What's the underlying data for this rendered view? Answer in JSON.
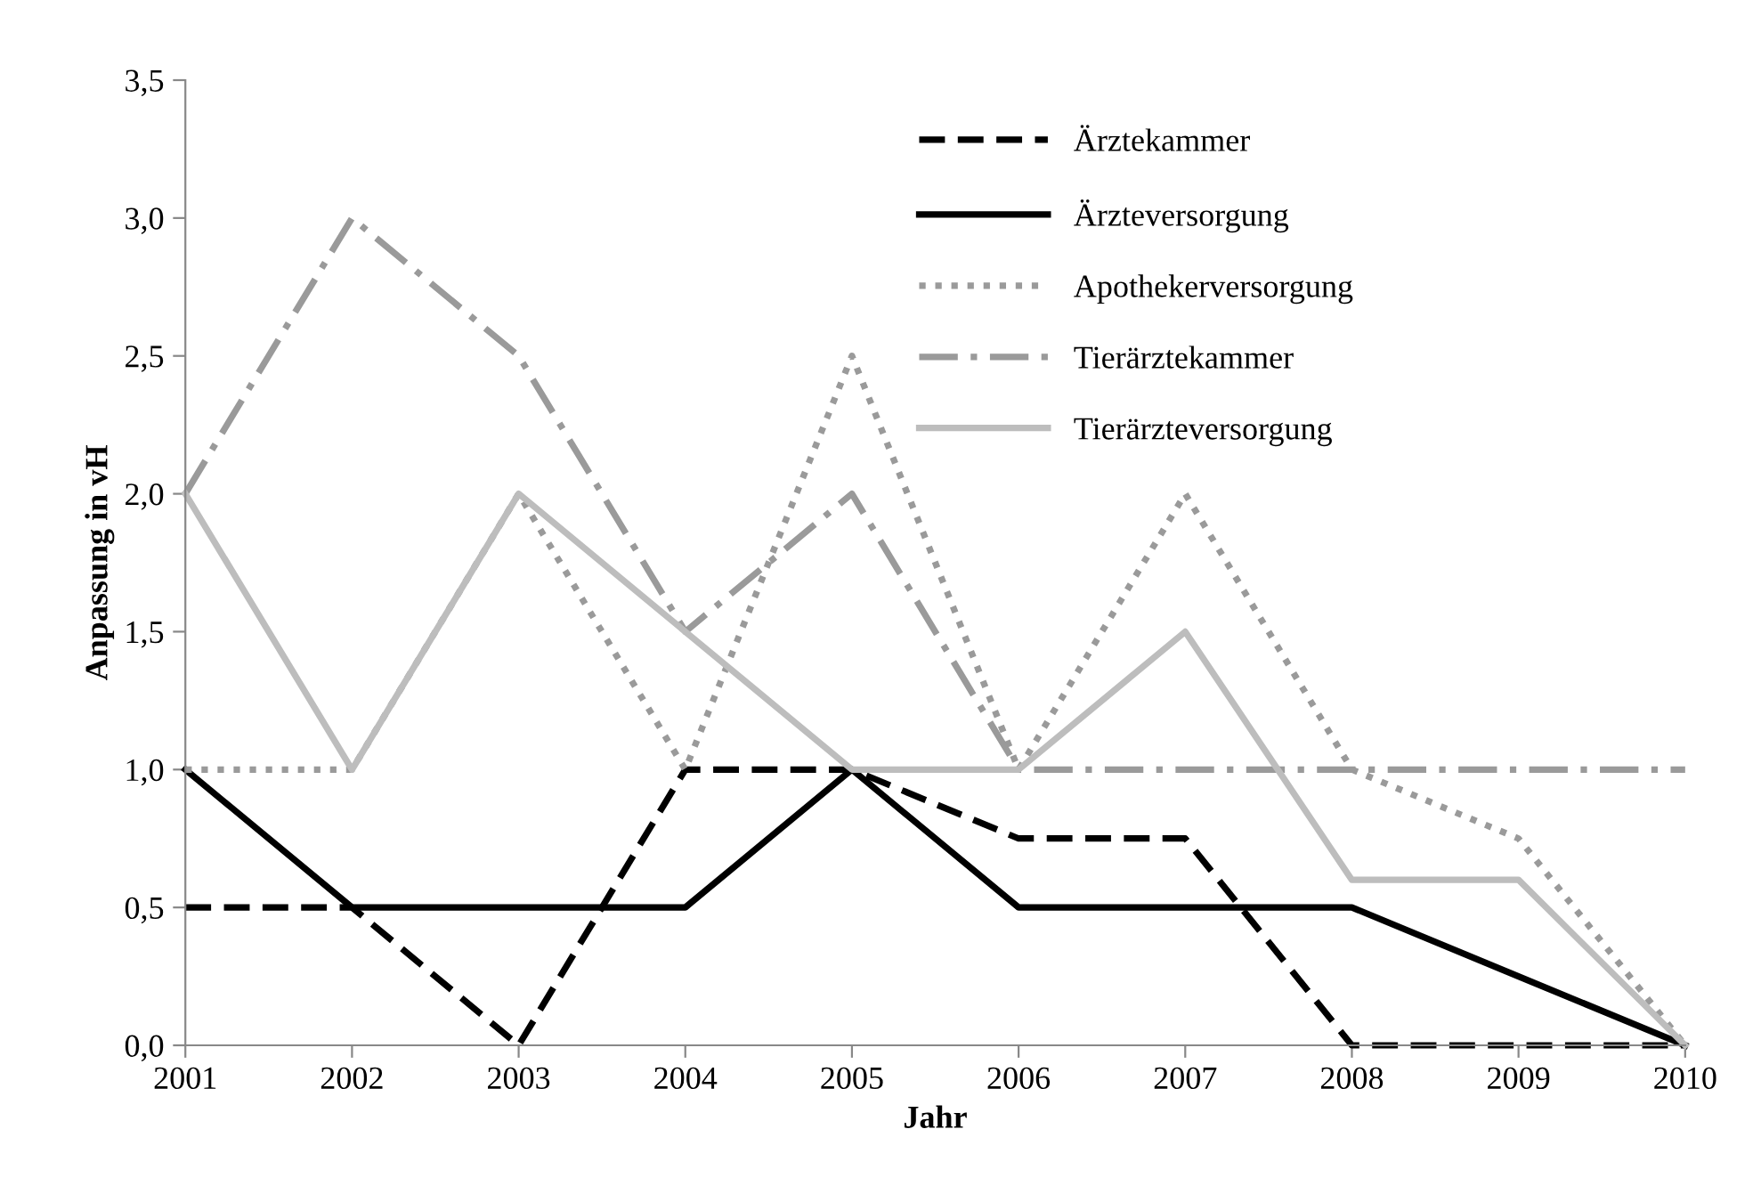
{
  "chart_data": {
    "type": "line",
    "xlabel": "Jahr",
    "ylabel": "Anpassung in vH",
    "x": [
      2001,
      2002,
      2003,
      2004,
      2005,
      2006,
      2007,
      2008,
      2009,
      2010
    ],
    "xlim": [
      2001,
      2010
    ],
    "xticks": [
      2001,
      2002,
      2003,
      2004,
      2005,
      2006,
      2007,
      2008,
      2009,
      2010
    ],
    "ylim": [
      0,
      3.5
    ],
    "yticks": [
      {
        "value": 0,
        "label": "0,0"
      },
      {
        "value": 0.5,
        "label": "0,5"
      },
      {
        "value": 1,
        "label": "1,0"
      },
      {
        "value": 1.5,
        "label": "1,5"
      },
      {
        "value": 2,
        "label": "2,0"
      },
      {
        "value": 2.5,
        "label": "2,5"
      },
      {
        "value": 3,
        "label": "3,0"
      },
      {
        "value": 3.5,
        "label": "3,5"
      }
    ],
    "grid": false,
    "legend": "top",
    "marker": "none",
    "series": [
      {
        "name": "Ärztekammer",
        "color": "#000000",
        "line_style": "dashed",
        "values": [
          0.5,
          0.5,
          0,
          1,
          1,
          0.75,
          0.75,
          0,
          0,
          0
        ]
      },
      {
        "name": "Ärzteversorgung",
        "color": "#000000",
        "line_style": "solid",
        "values": [
          1,
          0.5,
          0.5,
          0.5,
          1,
          0.5,
          0.5,
          0.5,
          0.25,
          0
        ]
      },
      {
        "name": "Apothekerversorgung",
        "color": "#9a9a9a",
        "line_style": "dotted",
        "values": [
          1,
          1,
          2,
          1,
          2.5,
          1,
          2,
          1,
          0.75,
          0
        ]
      },
      {
        "name": "Tierärztekammer",
        "color": "#9a9a9a",
        "line_style": "dashdot",
        "values": [
          2,
          3,
          2.5,
          1.5,
          2,
          1,
          1,
          1,
          1,
          1
        ]
      },
      {
        "name": "Tierärzteversorgung",
        "color": "#bdbdbd",
        "line_style": "solid",
        "values": [
          2,
          1,
          2,
          1.5,
          1,
          1,
          1.5,
          0.6,
          0.6,
          0
        ]
      }
    ]
  }
}
